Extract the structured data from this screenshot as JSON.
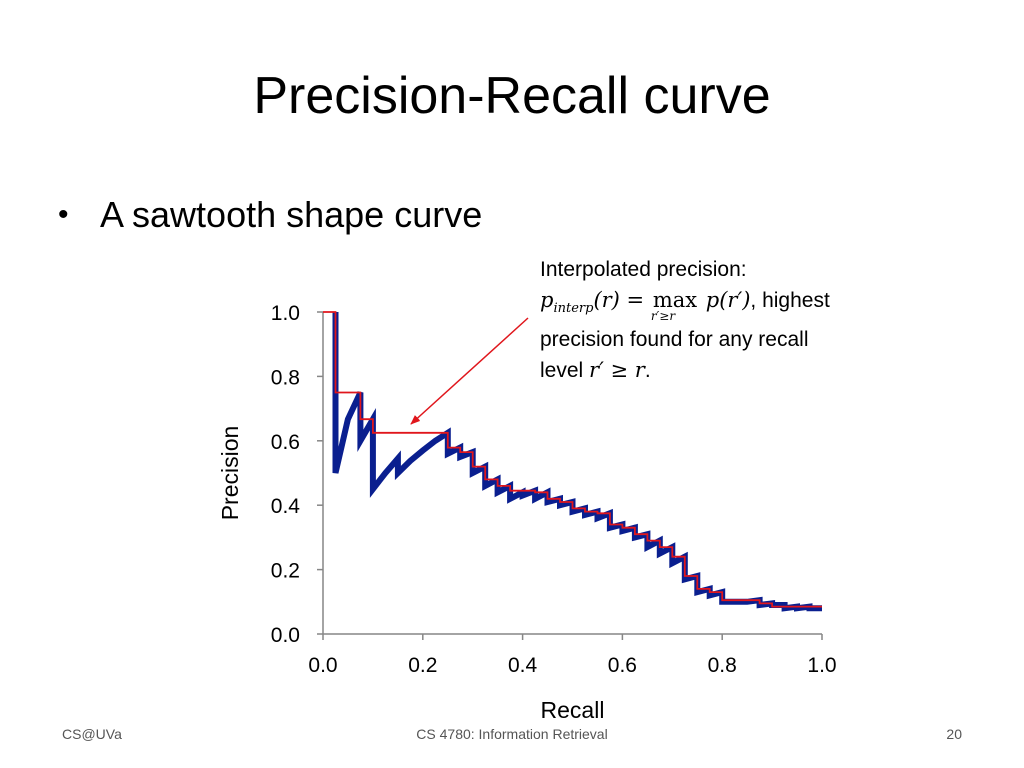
{
  "slide": {
    "title": "Precision-Recall curve",
    "bullet": "A sawtooth shape curve",
    "annotation": {
      "line1": "Interpolated precision:",
      "formula_p": "p",
      "formula_sub": "interp",
      "formula_arg": "(r) = ",
      "formula_max": "max",
      "formula_under": "r′≥r",
      "formula_rhs": " p(r′)",
      "formula_tail": ", highest",
      "line3": "precision found for any recall",
      "line4_prefix": "level ",
      "line4_math": "r′ ≥ r",
      "line4_suffix": "."
    }
  },
  "footer": {
    "left": "CS@UVa",
    "center": "CS 4780: Information Retrieval",
    "right": "20"
  },
  "chart_data": {
    "type": "line",
    "xlabel": "Recall",
    "ylabel": "Precision",
    "xlim": [
      0,
      1
    ],
    "ylim": [
      0,
      1
    ],
    "x_ticks": [
      "0.0",
      "0.2",
      "0.4",
      "0.6",
      "0.8",
      "1.0"
    ],
    "y_ticks": [
      "0.0",
      "0.2",
      "0.4",
      "0.6",
      "0.8",
      "1.0"
    ],
    "grid": false,
    "series": [
      {
        "color": "#0a1f8f",
        "x": [
          0.025,
          0.025,
          0.025,
          0.05,
          0.075,
          0.075,
          0.1,
          0.1,
          0.125,
          0.15,
          0.15,
          0.175,
          0.2,
          0.225,
          0.25,
          0.25,
          0.275,
          0.275,
          0.3,
          0.3,
          0.325,
          0.325,
          0.35,
          0.35,
          0.375,
          0.375,
          0.4,
          0.4,
          0.425,
          0.425,
          0.45,
          0.45,
          0.475,
          0.475,
          0.5,
          0.5,
          0.525,
          0.525,
          0.55,
          0.55,
          0.575,
          0.575,
          0.6,
          0.6,
          0.625,
          0.625,
          0.65,
          0.65,
          0.675,
          0.675,
          0.7,
          0.7,
          0.725,
          0.725,
          0.75,
          0.75,
          0.775,
          0.775,
          0.8,
          0.8,
          0.825,
          0.825,
          0.85,
          0.85,
          0.875,
          0.875,
          0.9,
          0.9,
          0.925,
          0.925,
          0.95,
          0.95,
          0.975,
          0.975,
          1.0
        ],
        "y": [
          1.0,
          1.0,
          0.5,
          0.667,
          0.75,
          0.6,
          0.667,
          0.45,
          0.5,
          0.545,
          0.5,
          0.538,
          0.57,
          0.6,
          0.625,
          0.56,
          0.579,
          0.55,
          0.565,
          0.5,
          0.52,
          0.46,
          0.48,
          0.44,
          0.46,
          0.42,
          0.44,
          0.43,
          0.445,
          0.42,
          0.44,
          0.41,
          0.42,
          0.4,
          0.41,
          0.38,
          0.39,
          0.37,
          0.38,
          0.36,
          0.375,
          0.33,
          0.34,
          0.32,
          0.33,
          0.3,
          0.31,
          0.27,
          0.29,
          0.25,
          0.27,
          0.22,
          0.24,
          0.17,
          0.18,
          0.13,
          0.14,
          0.12,
          0.13,
          0.1,
          0.1,
          0.1,
          0.1,
          0.1,
          0.105,
          0.09,
          0.095,
          0.09,
          0.09,
          0.08,
          0.085,
          0.08,
          0.085,
          0.08,
          0.08
        ]
      },
      {
        "color": "#e0161c",
        "x": [
          0,
          0.025,
          0.025,
          0.075,
          0.075,
          0.1,
          0.1,
          0.25,
          0.25,
          0.275,
          0.275,
          0.3,
          0.3,
          0.325,
          0.325,
          0.35,
          0.35,
          0.375,
          0.375,
          0.425,
          0.425,
          0.45,
          0.45,
          0.475,
          0.475,
          0.5,
          0.5,
          0.525,
          0.525,
          0.55,
          0.55,
          0.575,
          0.575,
          0.6,
          0.6,
          0.625,
          0.625,
          0.65,
          0.65,
          0.675,
          0.675,
          0.7,
          0.7,
          0.725,
          0.725,
          0.75,
          0.75,
          0.775,
          0.775,
          0.8,
          0.8,
          0.875,
          0.875,
          0.9,
          0.9,
          1.0
        ],
        "y": [
          1.0,
          1.0,
          0.75,
          0.75,
          0.667,
          0.667,
          0.625,
          0.625,
          0.579,
          0.579,
          0.565,
          0.565,
          0.52,
          0.52,
          0.48,
          0.48,
          0.46,
          0.46,
          0.445,
          0.445,
          0.44,
          0.44,
          0.42,
          0.42,
          0.41,
          0.41,
          0.39,
          0.39,
          0.38,
          0.38,
          0.375,
          0.375,
          0.34,
          0.34,
          0.33,
          0.33,
          0.31,
          0.31,
          0.29,
          0.29,
          0.27,
          0.27,
          0.24,
          0.24,
          0.18,
          0.18,
          0.14,
          0.14,
          0.13,
          0.13,
          0.105,
          0.105,
          0.095,
          0.095,
          0.085,
          0.085
        ]
      }
    ]
  }
}
